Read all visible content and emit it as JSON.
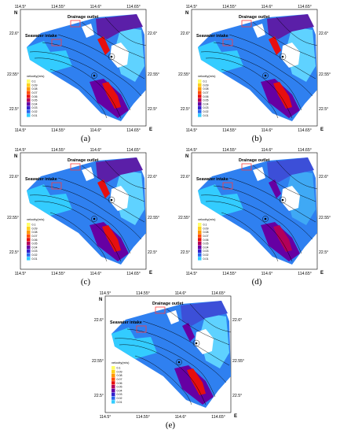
{
  "panels": [
    {
      "id": "a",
      "caption": "(a)"
    },
    {
      "id": "b",
      "caption": "(b)"
    },
    {
      "id": "c",
      "caption": "(c)"
    },
    {
      "id": "d",
      "caption": "(d)"
    },
    {
      "id": "e",
      "caption": "(e)"
    }
  ],
  "map": {
    "lon_ticks_top": [
      "114.5°",
      "114.55°",
      "114.6°",
      "114.65°"
    ],
    "lon_ticks_bottom": [
      "114.5°",
      "114.55°",
      "114.6°",
      "114.65°"
    ],
    "lat_ticks_left": [
      "22.6°",
      "22.55°",
      "22.5°"
    ],
    "lat_ticks_right": [
      "22.6°",
      "22.55°",
      "22.5°"
    ],
    "north_label": "N",
    "east_label": "E",
    "drainage_label": "Drainage outlet",
    "intake_label": "Seawater intake"
  },
  "legend": {
    "title": "velocity(m/s)",
    "values": [
      "0.1",
      "0.09",
      "0.08",
      "0.07",
      "0.06",
      "0.05",
      "0.04",
      "0.03",
      "0.02",
      "0.01"
    ],
    "colors": [
      "#ffff66",
      "#ffd21a",
      "#ff9900",
      "#ff4d00",
      "#e60f0f",
      "#b3005a",
      "#6600a3",
      "#3322cc",
      "#2a66ee",
      "#33ccff"
    ]
  }
}
